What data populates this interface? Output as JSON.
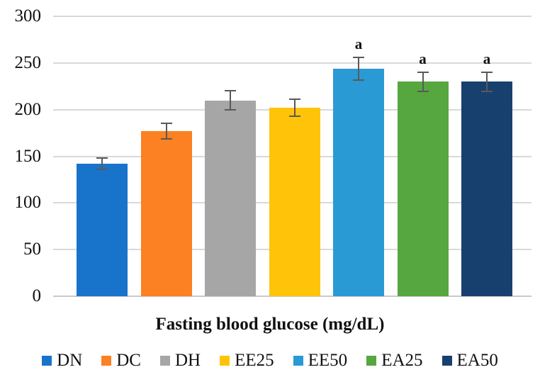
{
  "chart_data": {
    "type": "bar",
    "title": "Fasting blood glucose (mg/dL)",
    "categories": [
      "DN",
      "DC",
      "DH",
      "EE25",
      "EE50",
      "EA25",
      "EA50"
    ],
    "values": [
      142,
      177,
      210,
      202,
      244,
      230,
      230
    ],
    "error_bars": [
      7,
      9,
      11,
      10,
      13,
      11,
      11
    ],
    "annotations": [
      "",
      "",
      "",
      "",
      "a",
      "a",
      "a"
    ],
    "bar_colors": [
      "#1874CB",
      "#FB8122",
      "#A6A6A6",
      "#FFC40A",
      "#2A9AD5",
      "#56A73F",
      "#18406F"
    ],
    "ylim": [
      0,
      300
    ],
    "yticks": [
      0,
      50,
      100,
      150,
      200,
      250,
      300
    ],
    "grid": true,
    "gridline_color": "#D9D9D9",
    "error_bar_color": "#595959",
    "legend_position": "bottom",
    "xlabel": "",
    "ylabel": ""
  }
}
